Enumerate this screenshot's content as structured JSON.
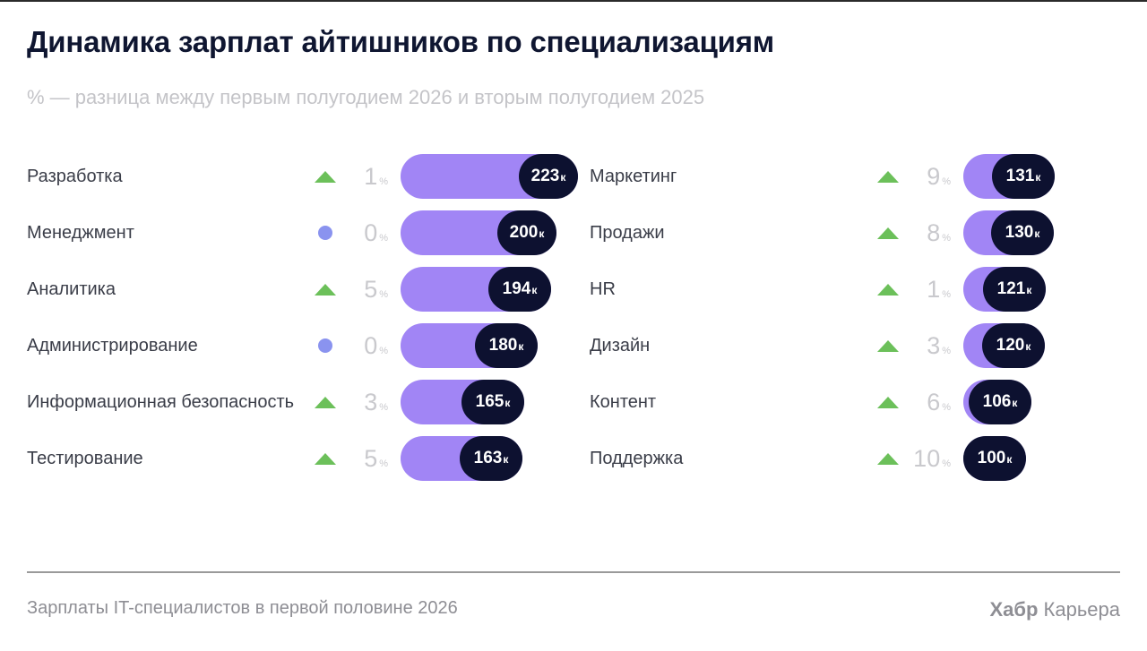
{
  "title": "Динамика зарплат айтишников по специализациям",
  "subtitle": "% — разница между первым полугодием 2026 и вторым полугодием 2025",
  "percent_sign": "%",
  "salary_unit": "к",
  "colors": {
    "pill": "#a185f5",
    "badge": "#0d1130",
    "up": "#6cc05a",
    "flat": "#8a93ef"
  },
  "chart_data": {
    "type": "bar",
    "columns": [
      {
        "rows": [
          {
            "name": "Разработка",
            "change": 1,
            "trend": "up",
            "salary": 223
          },
          {
            "name": "Менеджмент",
            "change": 0,
            "trend": "flat",
            "salary": 200
          },
          {
            "name": "Аналитика",
            "change": 5,
            "trend": "up",
            "salary": 194
          },
          {
            "name": "Администрирование",
            "change": 0,
            "trend": "flat",
            "salary": 180
          },
          {
            "name": "Информационная безопасность",
            "change": 3,
            "trend": "up",
            "salary": 165
          },
          {
            "name": "Тестирование",
            "change": 5,
            "trend": "up",
            "salary": 163
          }
        ]
      },
      {
        "rows": [
          {
            "name": "Маркетинг",
            "change": 9,
            "trend": "up",
            "salary": 131
          },
          {
            "name": "Продажи",
            "change": 8,
            "trend": "up",
            "salary": 130
          },
          {
            "name": "HR",
            "change": 1,
            "trend": "up",
            "salary": 121
          },
          {
            "name": "Дизайн",
            "change": 3,
            "trend": "up",
            "salary": 120
          },
          {
            "name": "Контент",
            "change": 6,
            "trend": "up",
            "salary": 106
          },
          {
            "name": "Поддержка",
            "change": 10,
            "trend": "up",
            "salary": 100
          }
        ]
      }
    ]
  },
  "footer": {
    "source": "Зарплаты IT-специалистов в первой половине 2026",
    "brand_bold": "Хабр",
    "brand_rest": "Карьера"
  }
}
